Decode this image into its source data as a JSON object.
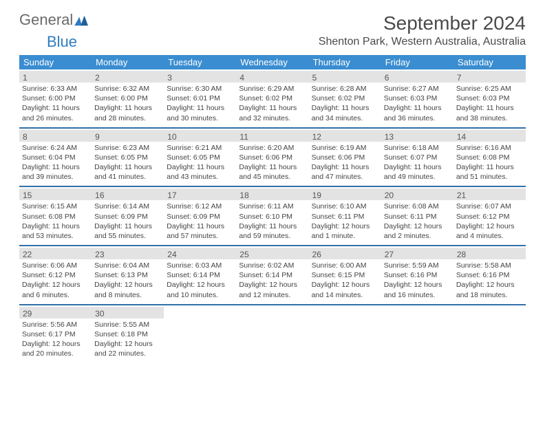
{
  "logo": {
    "text1": "General",
    "text2": "Blue"
  },
  "title": "September 2024",
  "location": "Shenton Park, Western Australia, Australia",
  "weekdays": [
    "Sunday",
    "Monday",
    "Tuesday",
    "Wednesday",
    "Thursday",
    "Friday",
    "Saturday"
  ],
  "colors": {
    "header_bg": "#3a8dd0",
    "row_border": "#2f6fa8",
    "day_strip_bg": "#e3e3e3",
    "text": "#444444",
    "logo_gray": "#6a6a6a",
    "logo_blue": "#2f7bbf"
  },
  "days": [
    {
      "n": 1,
      "sr": "6:33 AM",
      "ss": "6:00 PM",
      "dh": 11,
      "dm": 26
    },
    {
      "n": 2,
      "sr": "6:32 AM",
      "ss": "6:00 PM",
      "dh": 11,
      "dm": 28
    },
    {
      "n": 3,
      "sr": "6:30 AM",
      "ss": "6:01 PM",
      "dh": 11,
      "dm": 30
    },
    {
      "n": 4,
      "sr": "6:29 AM",
      "ss": "6:02 PM",
      "dh": 11,
      "dm": 32
    },
    {
      "n": 5,
      "sr": "6:28 AM",
      "ss": "6:02 PM",
      "dh": 11,
      "dm": 34
    },
    {
      "n": 6,
      "sr": "6:27 AM",
      "ss": "6:03 PM",
      "dh": 11,
      "dm": 36
    },
    {
      "n": 7,
      "sr": "6:25 AM",
      "ss": "6:03 PM",
      "dh": 11,
      "dm": 38
    },
    {
      "n": 8,
      "sr": "6:24 AM",
      "ss": "6:04 PM",
      "dh": 11,
      "dm": 39
    },
    {
      "n": 9,
      "sr": "6:23 AM",
      "ss": "6:05 PM",
      "dh": 11,
      "dm": 41
    },
    {
      "n": 10,
      "sr": "6:21 AM",
      "ss": "6:05 PM",
      "dh": 11,
      "dm": 43
    },
    {
      "n": 11,
      "sr": "6:20 AM",
      "ss": "6:06 PM",
      "dh": 11,
      "dm": 45
    },
    {
      "n": 12,
      "sr": "6:19 AM",
      "ss": "6:06 PM",
      "dh": 11,
      "dm": 47
    },
    {
      "n": 13,
      "sr": "6:18 AM",
      "ss": "6:07 PM",
      "dh": 11,
      "dm": 49
    },
    {
      "n": 14,
      "sr": "6:16 AM",
      "ss": "6:08 PM",
      "dh": 11,
      "dm": 51
    },
    {
      "n": 15,
      "sr": "6:15 AM",
      "ss": "6:08 PM",
      "dh": 11,
      "dm": 53
    },
    {
      "n": 16,
      "sr": "6:14 AM",
      "ss": "6:09 PM",
      "dh": 11,
      "dm": 55
    },
    {
      "n": 17,
      "sr": "6:12 AM",
      "ss": "6:09 PM",
      "dh": 11,
      "dm": 57
    },
    {
      "n": 18,
      "sr": "6:11 AM",
      "ss": "6:10 PM",
      "dh": 11,
      "dm": 59
    },
    {
      "n": 19,
      "sr": "6:10 AM",
      "ss": "6:11 PM",
      "dh": 12,
      "dm": 1
    },
    {
      "n": 20,
      "sr": "6:08 AM",
      "ss": "6:11 PM",
      "dh": 12,
      "dm": 2
    },
    {
      "n": 21,
      "sr": "6:07 AM",
      "ss": "6:12 PM",
      "dh": 12,
      "dm": 4
    },
    {
      "n": 22,
      "sr": "6:06 AM",
      "ss": "6:12 PM",
      "dh": 12,
      "dm": 6
    },
    {
      "n": 23,
      "sr": "6:04 AM",
      "ss": "6:13 PM",
      "dh": 12,
      "dm": 8
    },
    {
      "n": 24,
      "sr": "6:03 AM",
      "ss": "6:14 PM",
      "dh": 12,
      "dm": 10
    },
    {
      "n": 25,
      "sr": "6:02 AM",
      "ss": "6:14 PM",
      "dh": 12,
      "dm": 12
    },
    {
      "n": 26,
      "sr": "6:00 AM",
      "ss": "6:15 PM",
      "dh": 12,
      "dm": 14
    },
    {
      "n": 27,
      "sr": "5:59 AM",
      "ss": "6:16 PM",
      "dh": 12,
      "dm": 16
    },
    {
      "n": 28,
      "sr": "5:58 AM",
      "ss": "6:16 PM",
      "dh": 12,
      "dm": 18
    },
    {
      "n": 29,
      "sr": "5:56 AM",
      "ss": "6:17 PM",
      "dh": 12,
      "dm": 20
    },
    {
      "n": 30,
      "sr": "5:55 AM",
      "ss": "6:18 PM",
      "dh": 12,
      "dm": 22
    }
  ],
  "labels": {
    "sunrise": "Sunrise:",
    "sunset": "Sunset:",
    "daylight": "Daylight:",
    "hours": "hours",
    "and": "and",
    "minute": "minute",
    "minutes": "minutes"
  },
  "layout": {
    "first_weekday_index": 0,
    "rows": 5,
    "cols": 7
  }
}
